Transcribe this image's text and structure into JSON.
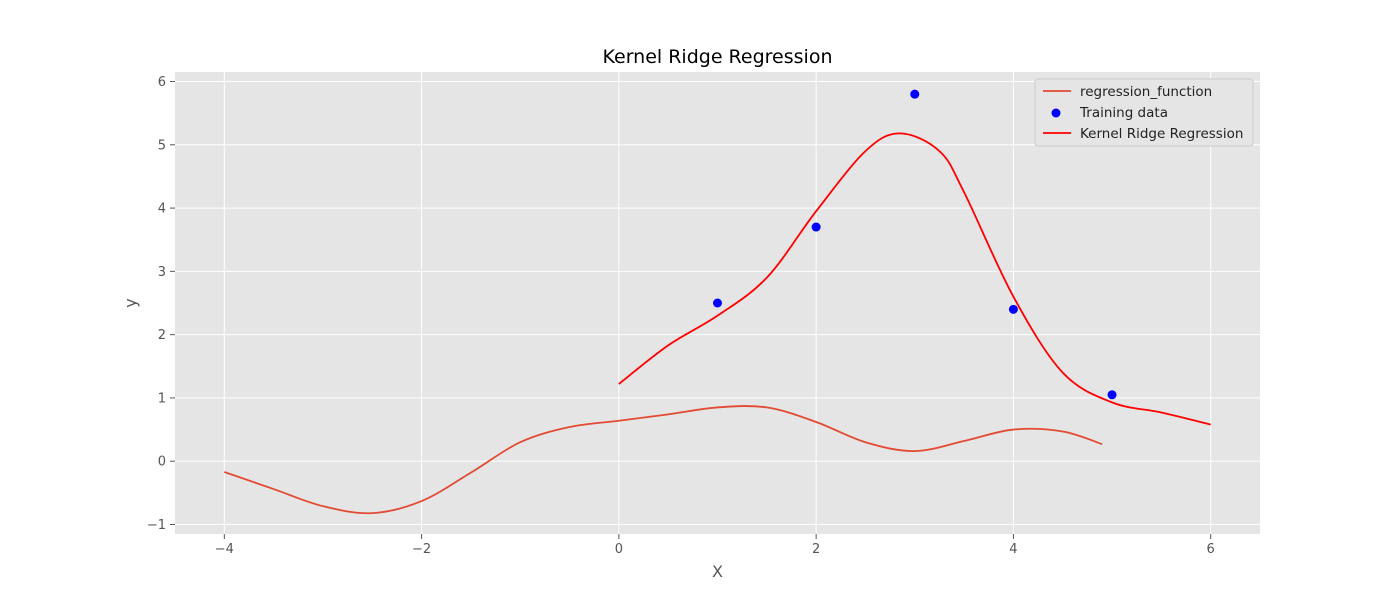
{
  "chart_data": {
    "type": "line",
    "title": "Kernel Ridge Regression",
    "xlabel": "X",
    "ylabel": "y",
    "xlim": [
      -4.5,
      6.5
    ],
    "ylim": [
      -1.15,
      6.15
    ],
    "xticks": [
      -4,
      -2,
      0,
      2,
      4,
      6
    ],
    "yticks": [
      -1,
      0,
      1,
      2,
      3,
      4,
      5,
      6
    ],
    "grid": true,
    "legend_position": "top-right",
    "colors": {
      "background": "#e5e5e5",
      "grid": "#ffffff",
      "regression_function": "#e24a33",
      "training_data": "#0000ff",
      "kernel_ridge": "#ff0000"
    },
    "series": [
      {
        "name": "regression_function",
        "kind": "line",
        "x": [
          -4.0,
          -3.5,
          -3.0,
          -2.5,
          -2.0,
          -1.5,
          -1.0,
          -0.5,
          0.0,
          0.5,
          1.0,
          1.5,
          2.0,
          2.5,
          3.0,
          3.5,
          4.0,
          4.5,
          4.9
        ],
        "y": [
          -0.17,
          -0.44,
          -0.71,
          -0.82,
          -0.63,
          -0.18,
          0.3,
          0.54,
          0.64,
          0.74,
          0.85,
          0.85,
          0.62,
          0.3,
          0.16,
          0.32,
          0.5,
          0.47,
          0.27
        ]
      },
      {
        "name": "Training data",
        "kind": "scatter",
        "x": [
          1,
          2,
          3,
          4,
          5
        ],
        "y": [
          2.5,
          3.7,
          5.8,
          2.4,
          1.05
        ]
      },
      {
        "name": "Kernel Ridge Regression",
        "kind": "line",
        "x": [
          0.0,
          0.5,
          1.0,
          1.5,
          2.0,
          2.5,
          2.85,
          3.25,
          3.5,
          4.0,
          4.5,
          5.0,
          5.5,
          6.0
        ],
        "y": [
          1.22,
          1.83,
          2.3,
          2.9,
          3.95,
          4.9,
          5.18,
          4.9,
          4.25,
          2.6,
          1.4,
          0.93,
          0.77,
          0.58
        ]
      }
    ]
  }
}
